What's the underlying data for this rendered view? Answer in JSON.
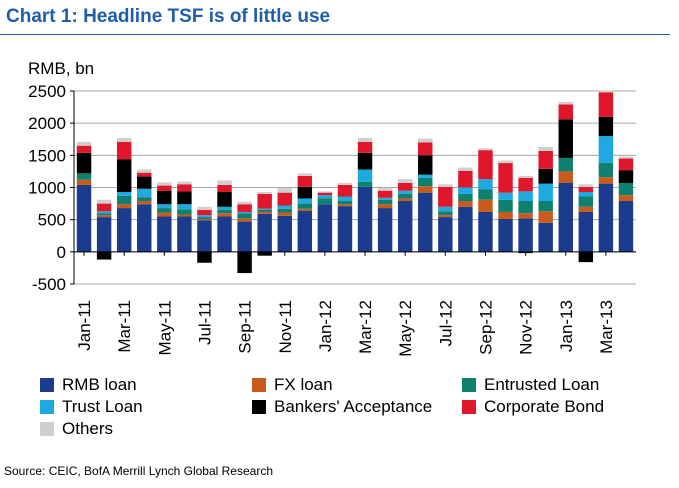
{
  "title": "Chart 1: Headline TSF is of little use",
  "source": "Source: CEIC, BofA Merrill Lynch Global Research",
  "colors": {
    "title": "#1f5ea8",
    "rmb_loan": "#1b3c8c",
    "fx_loan": "#c85a1c",
    "entrusted_loan": "#0f7f6e",
    "trust_loan": "#1ea9e1",
    "bankers_acceptance": "#000000",
    "corporate_bond": "#e0162b",
    "others": "#cfcfcf"
  },
  "chart_data": {
    "type": "bar",
    "stacked": true,
    "ylabel": "RMB, bn",
    "ylim": [
      -500,
      2500
    ],
    "yticks": [
      -500,
      0,
      500,
      1000,
      1500,
      2000,
      2500
    ],
    "ytick_labels": [
      "-500",
      "0",
      "500",
      "1000",
      "1500",
      "2000",
      "2500"
    ],
    "grid": true,
    "legend_position": "bottom",
    "categories": [
      "Jan-11",
      "Feb-11",
      "Mar-11",
      "Apr-11",
      "May-11",
      "Jun-11",
      "Jul-11",
      "Aug-11",
      "Sep-11",
      "Oct-11",
      "Nov-11",
      "Dec-11",
      "Jan-12",
      "Feb-12",
      "Mar-12",
      "Apr-12",
      "May-12",
      "Jun-12",
      "Jul-12",
      "Aug-12",
      "Sep-12",
      "Oct-12",
      "Nov-12",
      "Dec-12",
      "Jan-13",
      "Feb-13",
      "Mar-13",
      "Apr-13"
    ],
    "xtick_labels": [
      "Jan-11",
      "Mar-11",
      "May-11",
      "Jul-11",
      "Sep-11",
      "Nov-11",
      "Jan-12",
      "Mar-12",
      "May-12",
      "Jul-12",
      "Sep-12",
      "Nov-12",
      "Jan-13",
      "Mar-13"
    ],
    "series": [
      {
        "name": "RMB loan",
        "color_key": "rmb_loan",
        "values": [
          1040,
          540,
          680,
          740,
          550,
          550,
          490,
          550,
          470,
          590,
          560,
          640,
          740,
          710,
          1010,
          680,
          790,
          920,
          540,
          700,
          620,
          510,
          520,
          450,
          1070,
          620,
          1060,
          790
        ]
      },
      {
        "name": "FX loan",
        "color_key": "fx_loan",
        "values": [
          80,
          30,
          60,
          50,
          60,
          30,
          20,
          50,
          50,
          30,
          50,
          30,
          0,
          30,
          0,
          60,
          40,
          100,
          30,
          90,
          190,
          110,
          80,
          180,
          180,
          80,
          100,
          90
        ]
      },
      {
        "name": "Entrusted Loan",
        "color_key": "entrusted_loan",
        "values": [
          100,
          30,
          130,
          60,
          70,
          80,
          30,
          50,
          80,
          30,
          60,
          80,
          90,
          50,
          80,
          70,
          70,
          130,
          60,
          110,
          160,
          190,
          190,
          160,
          210,
          160,
          220,
          190
        ]
      },
      {
        "name": "Trust Loan",
        "color_key": "trust_loan",
        "values": [
          0,
          30,
          60,
          130,
          60,
          80,
          30,
          50,
          20,
          20,
          50,
          80,
          50,
          70,
          190,
          30,
          50,
          50,
          70,
          100,
          160,
          110,
          150,
          270,
          0,
          70,
          420,
          0
        ]
      },
      {
        "name": "Bankers' Acceptance",
        "color_key": "bankers_acceptance",
        "values": [
          320,
          -120,
          510,
          190,
          210,
          200,
          -170,
          230,
          -330,
          -60,
          0,
          180,
          0,
          0,
          260,
          0,
          0,
          300,
          0,
          0,
          0,
          0,
          -20,
          230,
          600,
          -160,
          300,
          200
        ]
      },
      {
        "name": "Corporate Bond",
        "color_key": "corporate_bond",
        "values": [
          110,
          120,
          270,
          60,
          80,
          110,
          80,
          110,
          120,
          230,
          200,
          170,
          40,
          180,
          170,
          110,
          120,
          200,
          310,
          260,
          450,
          460,
          210,
          280,
          230,
          80,
          380,
          180
        ]
      },
      {
        "name": "Others",
        "color_key": "others",
        "values": [
          60,
          60,
          60,
          50,
          50,
          40,
          50,
          70,
          40,
          30,
          70,
          40,
          20,
          30,
          60,
          40,
          60,
          60,
          40,
          50,
          30,
          40,
          30,
          60,
          40,
          40,
          30,
          30
        ]
      }
    ]
  }
}
